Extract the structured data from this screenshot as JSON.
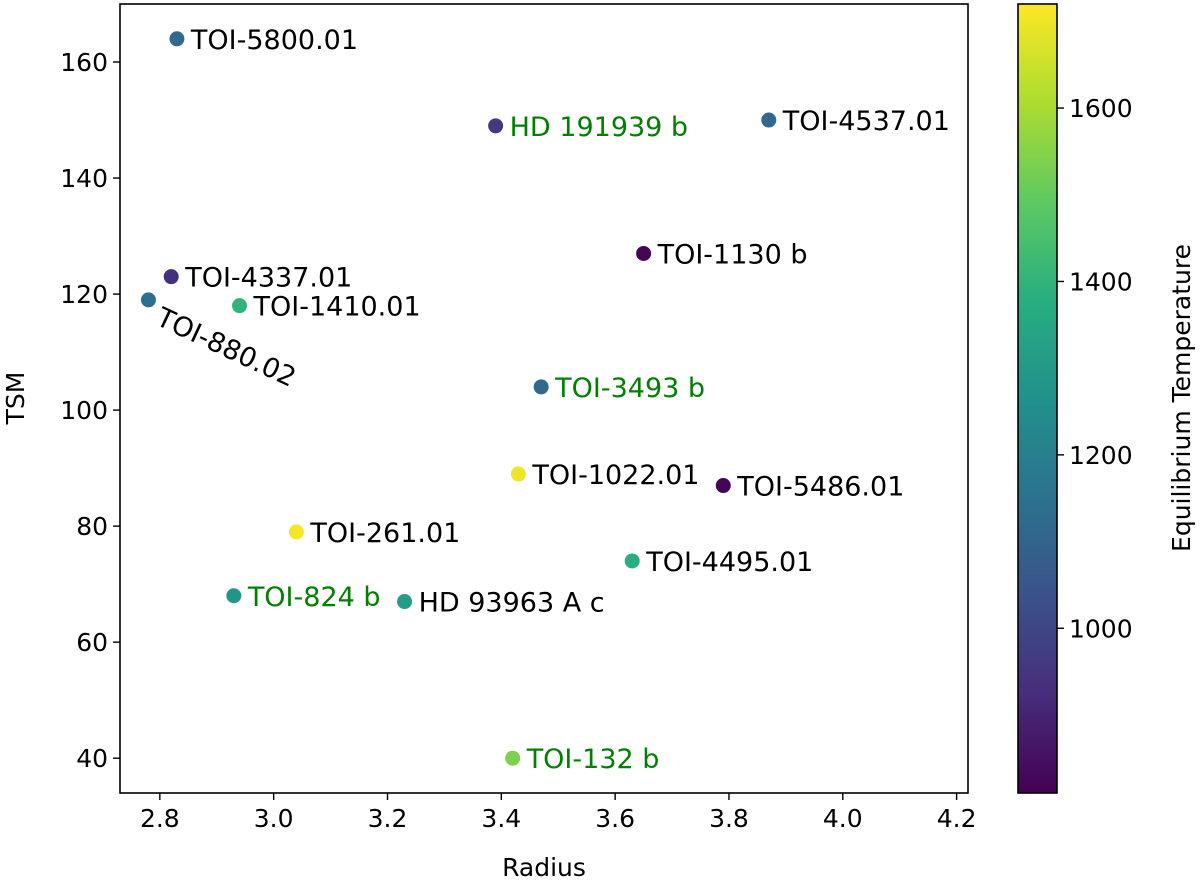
{
  "chart_data": {
    "type": "scatter",
    "title": "",
    "xlabel": "Radius",
    "ylabel": "TSM",
    "xlim": [
      2.73,
      4.22
    ],
    "ylim": [
      34,
      170
    ],
    "xticks": [
      2.8,
      3.0,
      3.2,
      3.4,
      3.6,
      3.8,
      4.0,
      4.2
    ],
    "xtick_labels": [
      "2.8",
      "3.0",
      "3.2",
      "3.4",
      "3.6",
      "3.8",
      "4.0",
      "4.2"
    ],
    "yticks": [
      40,
      60,
      80,
      100,
      120,
      140,
      160
    ],
    "ytick_labels": [
      "40",
      "60",
      "80",
      "100",
      "120",
      "140",
      "160"
    ],
    "colorbar": {
      "label": "Equilibrium Temperature",
      "range": [
        810,
        1720
      ],
      "ticks": [
        1000,
        1200,
        1400,
        1600
      ],
      "tick_labels": [
        "1000",
        "1200",
        "1400",
        "1600"
      ],
      "colormap": "viridis"
    },
    "points": [
      {
        "name": "TOI-5800.01",
        "x": 2.83,
        "y": 164,
        "teq": 1120,
        "label_color": "#000000",
        "label_rotation": 0
      },
      {
        "name": "HD 191939 b",
        "x": 3.39,
        "y": 149,
        "teq": 960,
        "label_color": "#008000",
        "label_rotation": 0
      },
      {
        "name": "TOI-4537.01",
        "x": 3.87,
        "y": 150,
        "teq": 1120,
        "label_color": "#000000",
        "label_rotation": 0
      },
      {
        "name": "TOI-1130 b",
        "x": 3.65,
        "y": 127,
        "teq": 820,
        "label_color": "#000000",
        "label_rotation": 0
      },
      {
        "name": "TOI-4337.01",
        "x": 2.82,
        "y": 123,
        "teq": 930,
        "label_color": "#000000",
        "label_rotation": 0
      },
      {
        "name": "TOI-880.02",
        "x": 2.78,
        "y": 119,
        "teq": 1140,
        "label_color": "#000000",
        "label_rotation": 25
      },
      {
        "name": "TOI-1410.01",
        "x": 2.94,
        "y": 118,
        "teq": 1400,
        "label_color": "#000000",
        "label_rotation": 0
      },
      {
        "name": "TOI-3493 b",
        "x": 3.47,
        "y": 104,
        "teq": 1120,
        "label_color": "#008000",
        "label_rotation": 0
      },
      {
        "name": "TOI-1022.01",
        "x": 3.43,
        "y": 89,
        "teq": 1700,
        "label_color": "#000000",
        "label_rotation": 0
      },
      {
        "name": "TOI-5486.01",
        "x": 3.79,
        "y": 87,
        "teq": 820,
        "label_color": "#000000",
        "label_rotation": 0
      },
      {
        "name": "TOI-261.01",
        "x": 3.04,
        "y": 79,
        "teq": 1710,
        "label_color": "#000000",
        "label_rotation": 0
      },
      {
        "name": "TOI-4495.01",
        "x": 3.63,
        "y": 74,
        "teq": 1380,
        "label_color": "#000000",
        "label_rotation": 0
      },
      {
        "name": "TOI-824 b",
        "x": 2.93,
        "y": 68,
        "teq": 1280,
        "label_color": "#008000",
        "label_rotation": 0
      },
      {
        "name": "HD 93963 A c",
        "x": 3.23,
        "y": 67,
        "teq": 1310,
        "label_color": "#000000",
        "label_rotation": 0
      },
      {
        "name": "TOI-132 b",
        "x": 3.42,
        "y": 40,
        "teq": 1540,
        "label_color": "#008000",
        "label_rotation": 0
      }
    ]
  }
}
